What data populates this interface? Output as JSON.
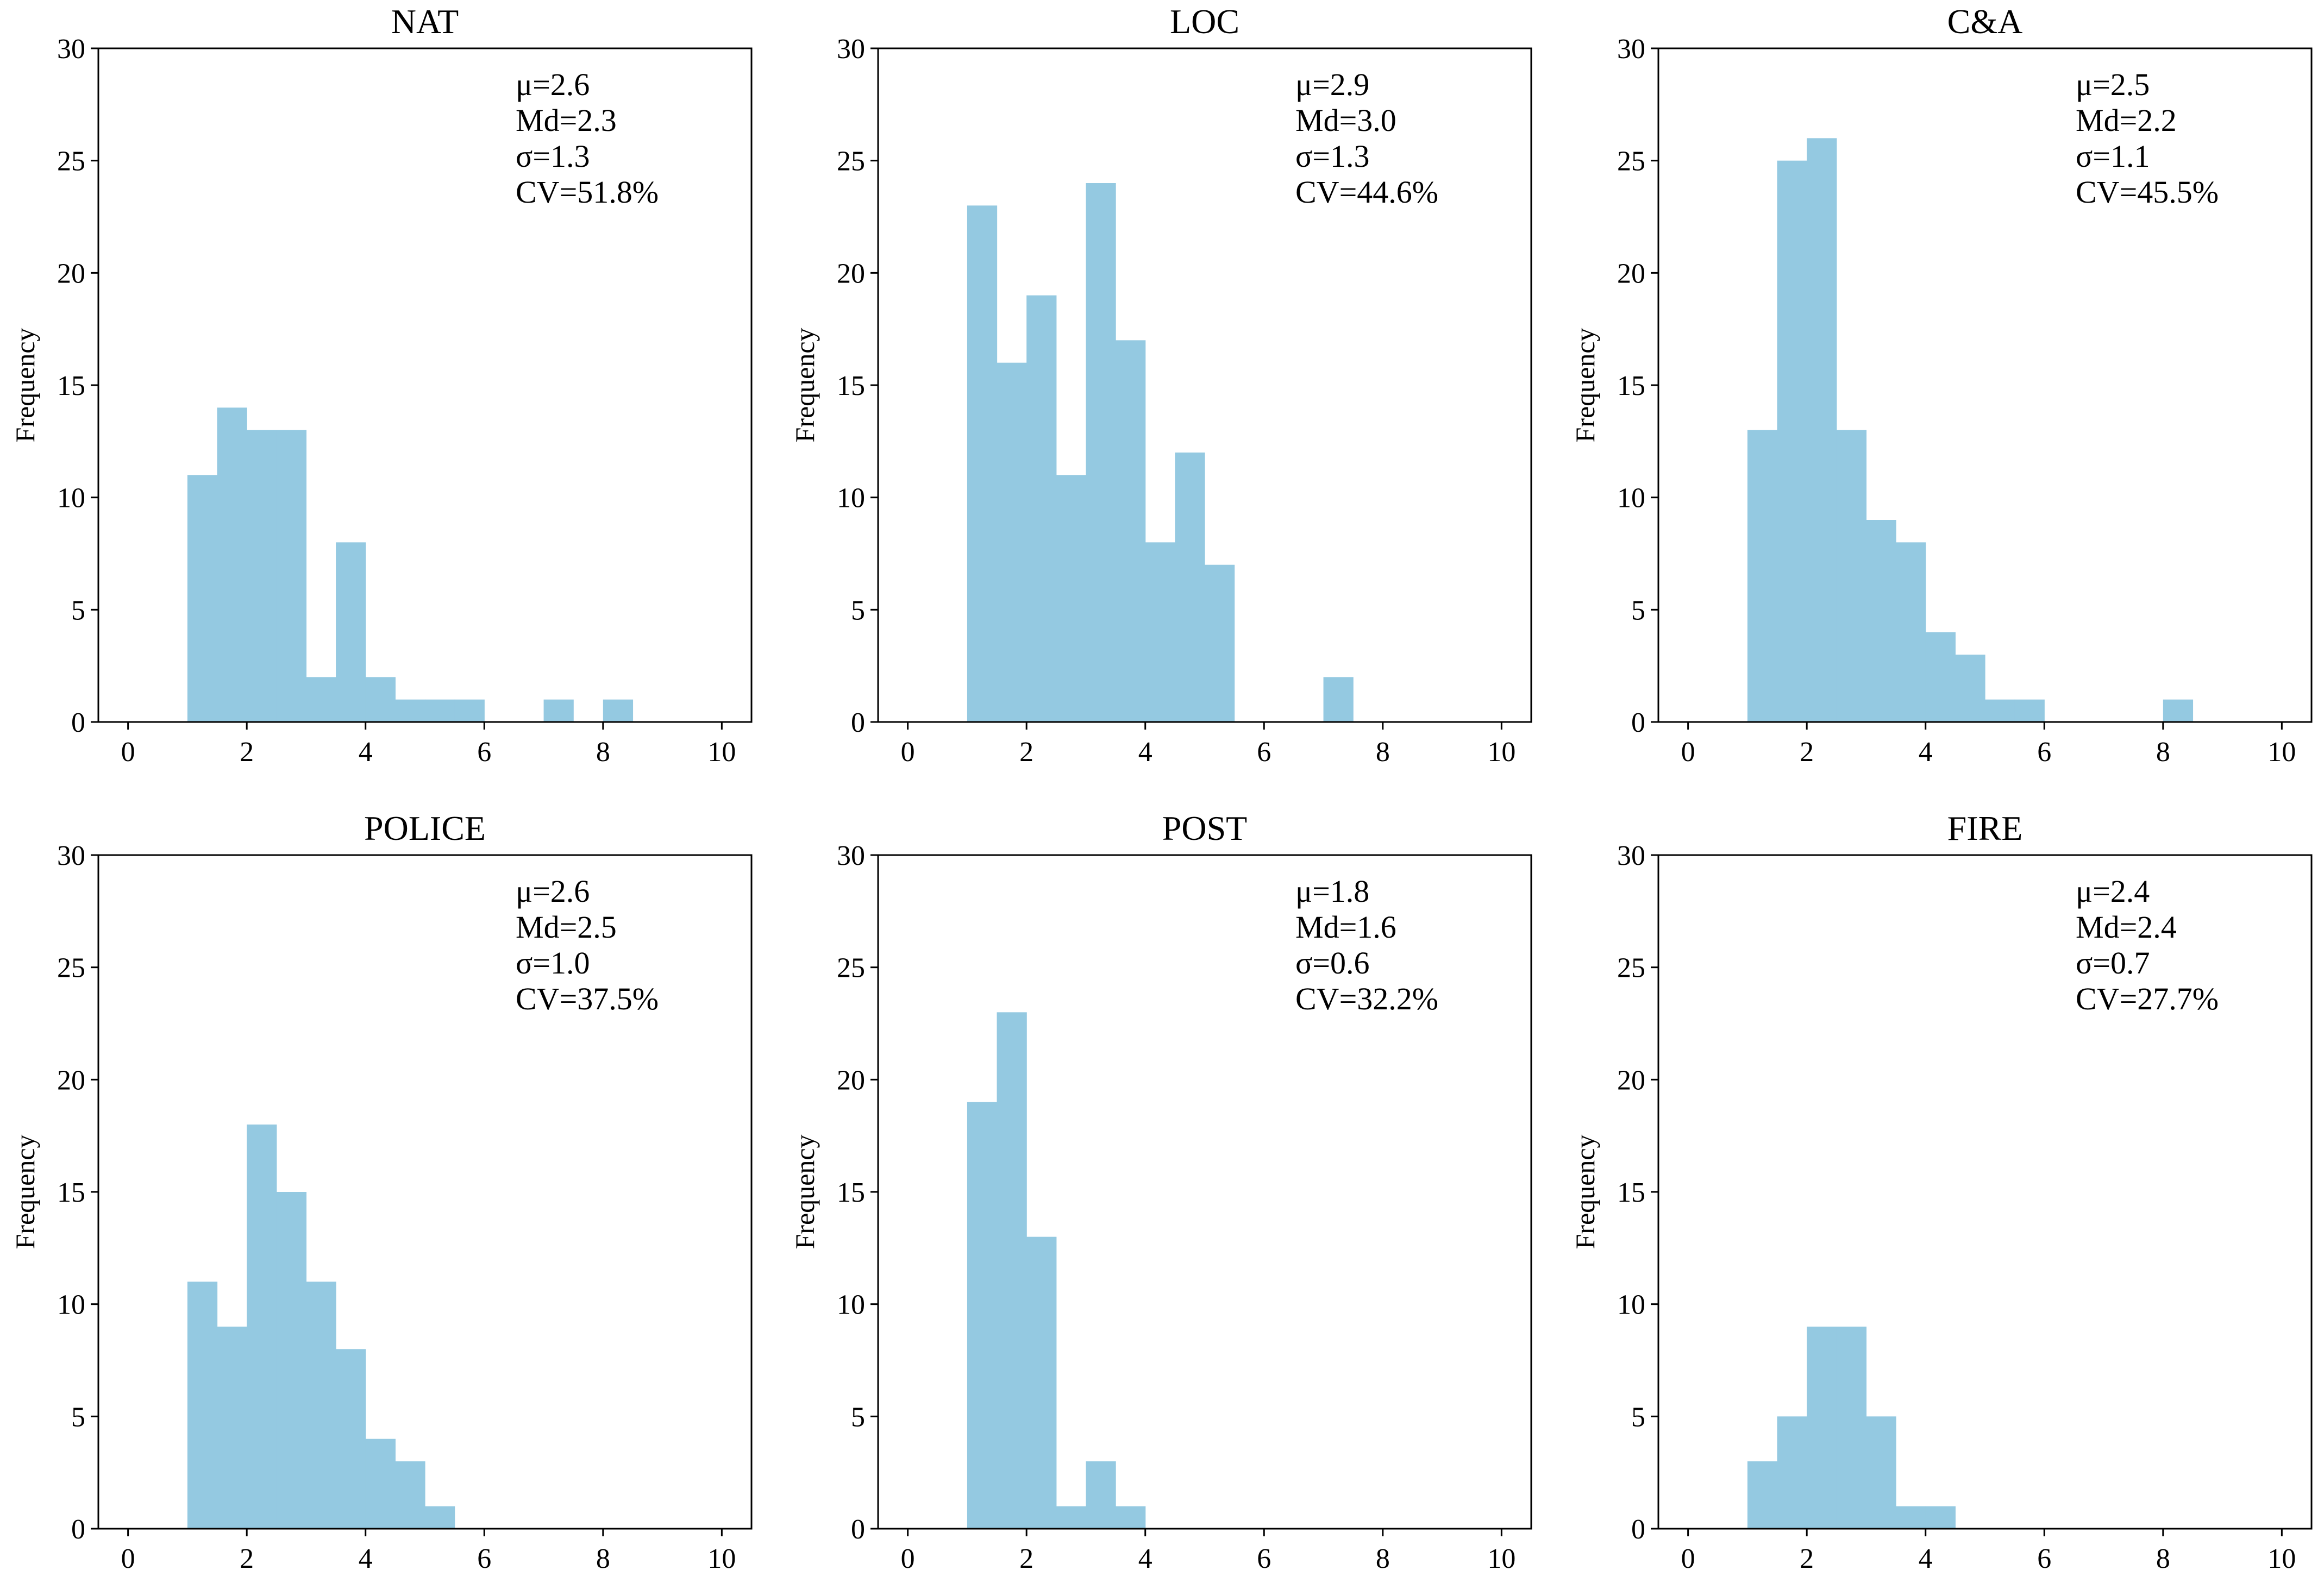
{
  "figure": {
    "style": {
      "bar_color": "#94c9e1",
      "axis_color": "#000000"
    }
  },
  "chart_data": [
    {
      "type": "bar",
      "title": "NAT",
      "ylabel": "Frequency",
      "xlim": [
        -0.5,
        10.5
      ],
      "ylim": [
        0,
        30
      ],
      "xticks": [
        0,
        2,
        4,
        6,
        8,
        10
      ],
      "yticks": [
        0,
        5,
        10,
        15,
        20,
        25,
        30
      ],
      "bin_width": 0.5,
      "bin_starts": [
        1.0,
        1.5,
        2.0,
        2.5,
        3.0,
        3.5,
        4.0,
        4.5,
        5.0,
        5.5,
        6.0,
        6.5,
        7.0,
        7.5,
        8.0
      ],
      "values": [
        11,
        14,
        13,
        13,
        2,
        8,
        2,
        1,
        1,
        1,
        0,
        0,
        1,
        0,
        1
      ],
      "stats": [
        "μ=2.6",
        "Md=2.3",
        "σ=1.3",
        "CV=51.8%"
      ]
    },
    {
      "type": "bar",
      "title": "LOC",
      "ylabel": "Frequency",
      "xlim": [
        -0.5,
        10.5
      ],
      "ylim": [
        0,
        30
      ],
      "xticks": [
        0,
        2,
        4,
        6,
        8,
        10
      ],
      "yticks": [
        0,
        5,
        10,
        15,
        20,
        25,
        30
      ],
      "bin_width": 0.5,
      "bin_starts": [
        1.0,
        1.5,
        2.0,
        2.5,
        3.0,
        3.5,
        4.0,
        4.5,
        5.0,
        5.5,
        6.0,
        6.5,
        7.0
      ],
      "values": [
        23,
        16,
        19,
        11,
        24,
        17,
        8,
        12,
        7,
        0,
        0,
        0,
        2
      ],
      "stats": [
        "μ=2.9",
        "Md=3.0",
        "σ=1.3",
        "CV=44.6%"
      ]
    },
    {
      "type": "bar",
      "title": "C&A",
      "ylabel": "Frequency",
      "xlim": [
        -0.5,
        10.5
      ],
      "ylim": [
        0,
        30
      ],
      "xticks": [
        0,
        2,
        4,
        6,
        8,
        10
      ],
      "yticks": [
        0,
        5,
        10,
        15,
        20,
        25,
        30
      ],
      "bin_width": 0.5,
      "bin_starts": [
        1.0,
        1.5,
        2.0,
        2.5,
        3.0,
        3.5,
        4.0,
        4.5,
        5.0,
        5.5,
        6.0,
        6.5,
        7.0,
        7.5,
        8.0
      ],
      "values": [
        13,
        25,
        26,
        13,
        9,
        8,
        4,
        3,
        1,
        1,
        0,
        0,
        0,
        0,
        1
      ],
      "stats": [
        "μ=2.5",
        "Md=2.2",
        "σ=1.1",
        "CV=45.5%"
      ]
    },
    {
      "type": "bar",
      "title": "POLICE",
      "ylabel": "Frequency",
      "xlim": [
        -0.5,
        10.5
      ],
      "ylim": [
        0,
        30
      ],
      "xticks": [
        0,
        2,
        4,
        6,
        8,
        10
      ],
      "yticks": [
        0,
        5,
        10,
        15,
        20,
        25,
        30
      ],
      "bin_width": 0.5,
      "bin_starts": [
        1.0,
        1.5,
        2.0,
        2.5,
        3.0,
        3.5,
        4.0,
        4.5,
        5.0
      ],
      "values": [
        11,
        9,
        18,
        15,
        11,
        8,
        4,
        3,
        1
      ],
      "stats": [
        "μ=2.6",
        "Md=2.5",
        "σ=1.0",
        "CV=37.5%"
      ]
    },
    {
      "type": "bar",
      "title": "POST",
      "ylabel": "Frequency",
      "xlim": [
        -0.5,
        10.5
      ],
      "ylim": [
        0,
        30
      ],
      "xticks": [
        0,
        2,
        4,
        6,
        8,
        10
      ],
      "yticks": [
        0,
        5,
        10,
        15,
        20,
        25,
        30
      ],
      "bin_width": 0.5,
      "bin_starts": [
        1.0,
        1.5,
        2.0,
        2.5,
        3.0,
        3.5
      ],
      "values": [
        19,
        23,
        13,
        1,
        3,
        1
      ],
      "stats": [
        "μ=1.8",
        "Md=1.6",
        "σ=0.6",
        "CV=32.2%"
      ]
    },
    {
      "type": "bar",
      "title": "FIRE",
      "ylabel": "Frequency",
      "xlim": [
        -0.5,
        10.5
      ],
      "ylim": [
        0,
        30
      ],
      "xticks": [
        0,
        2,
        4,
        6,
        8,
        10
      ],
      "yticks": [
        0,
        5,
        10,
        15,
        20,
        25,
        30
      ],
      "bin_width": 0.5,
      "bin_starts": [
        1.0,
        1.5,
        2.0,
        2.5,
        3.0,
        3.5,
        4.0
      ],
      "values": [
        3,
        5,
        9,
        9,
        5,
        1,
        1
      ],
      "stats": [
        "μ=2.4",
        "Md=2.4",
        "σ=0.7",
        "CV=27.7%"
      ]
    }
  ]
}
